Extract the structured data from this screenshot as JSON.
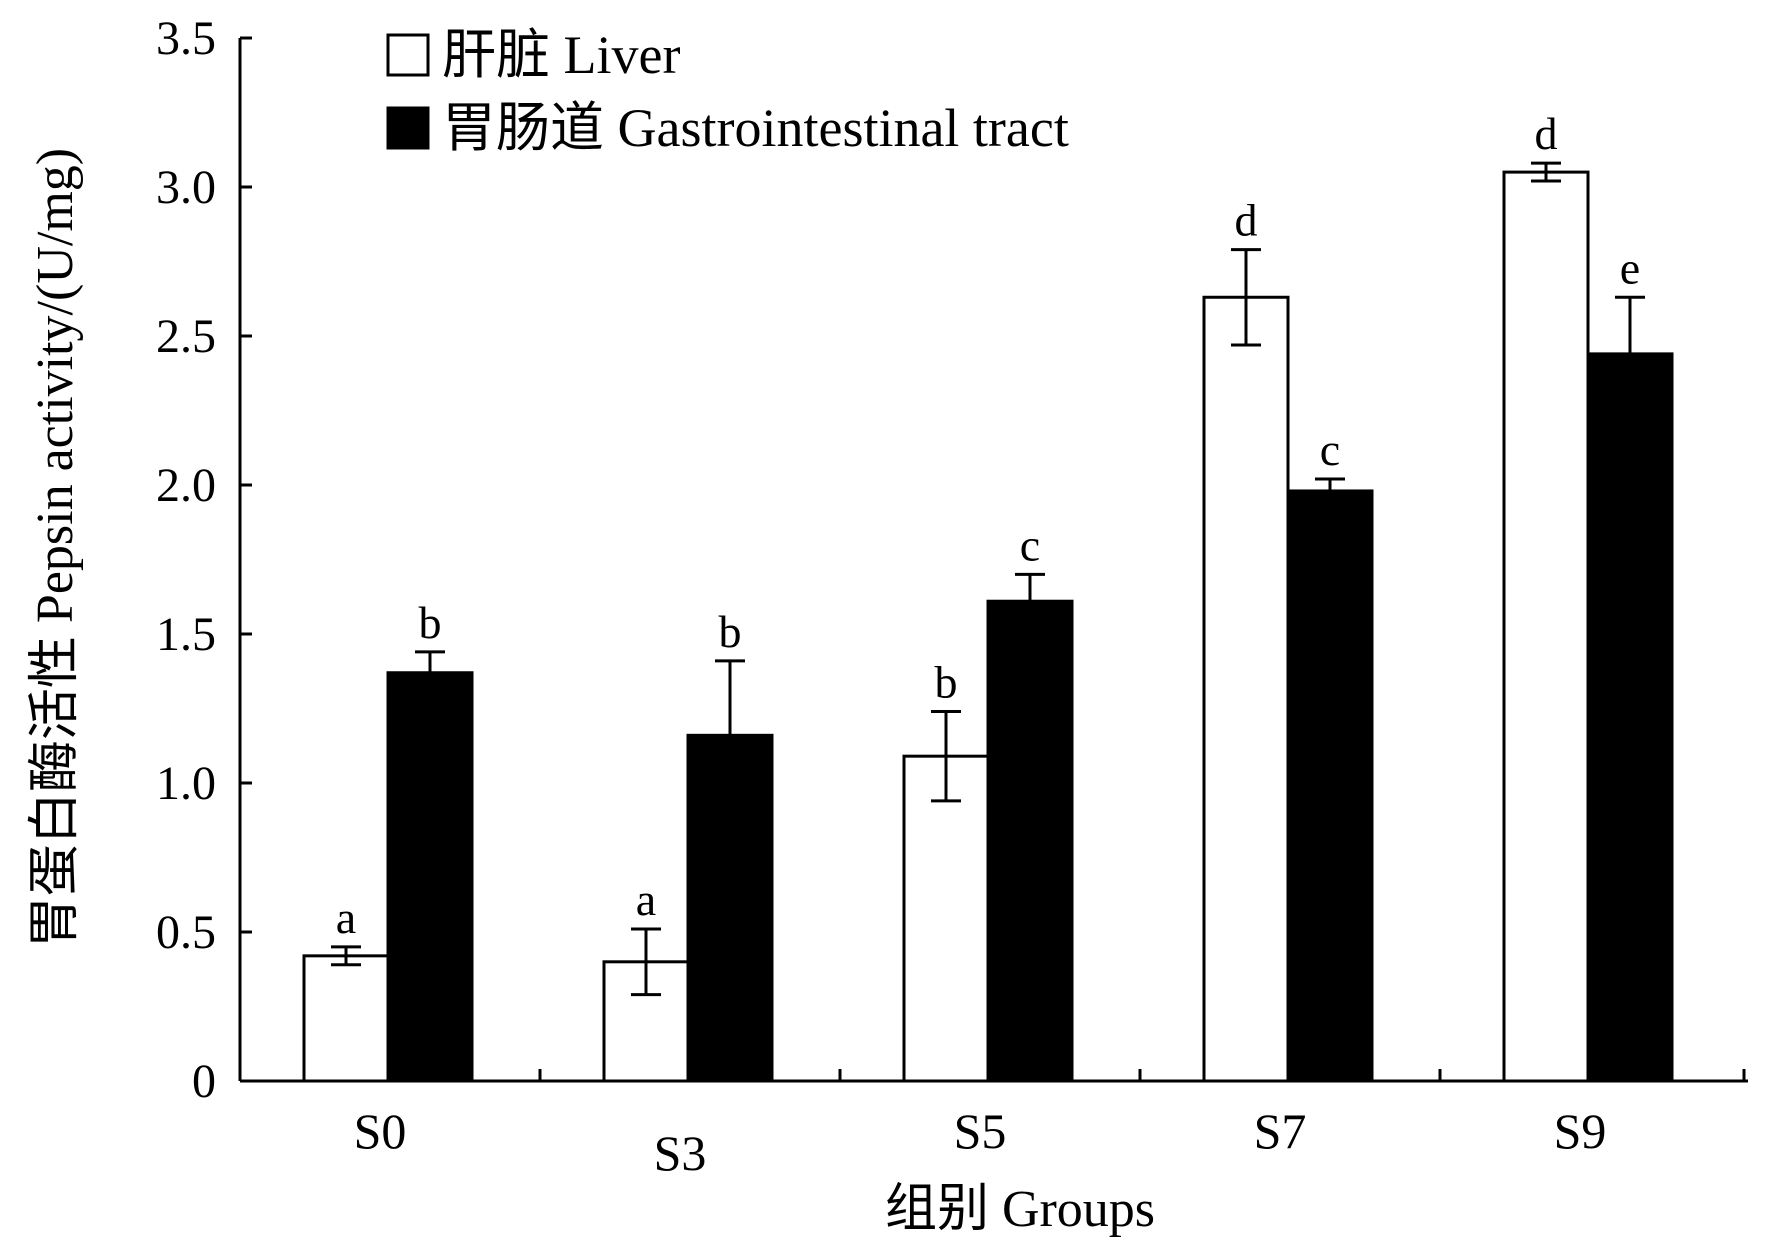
{
  "chart_data": {
    "type": "bar",
    "xlabel": "组别 Groups",
    "ylabel": "胃蛋白酶活性 Pepsin activity/(U/mg)",
    "ylim": [
      0,
      3.5
    ],
    "yticks": [
      0,
      0.5,
      1.0,
      1.5,
      2.0,
      2.5,
      3.0,
      3.5
    ],
    "ytick_labels": [
      "0",
      "0.5",
      "1.0",
      "1.5",
      "2.0",
      "2.5",
      "3.0",
      "3.5"
    ],
    "categories": [
      "S0",
      "S3",
      "S5",
      "S7",
      "S9"
    ],
    "legend_position": "top-left",
    "series": [
      {
        "name": "肝脏 Liver",
        "fill": "#ffffff",
        "values": [
          0.42,
          0.4,
          1.09,
          2.63,
          3.05
        ],
        "errors": [
          0.03,
          0.11,
          0.15,
          0.16,
          0.03
        ],
        "sig": [
          "a",
          "a",
          "b",
          "d",
          "d"
        ]
      },
      {
        "name": "胃肠道 Gastrointestinal tract",
        "fill": "#000000",
        "values": [
          1.37,
          1.16,
          1.61,
          1.98,
          2.44
        ],
        "errors": [
          0.07,
          0.25,
          0.09,
          0.04,
          0.19
        ],
        "sig": [
          "b",
          "b",
          "c",
          "c",
          "e"
        ]
      }
    ]
  }
}
